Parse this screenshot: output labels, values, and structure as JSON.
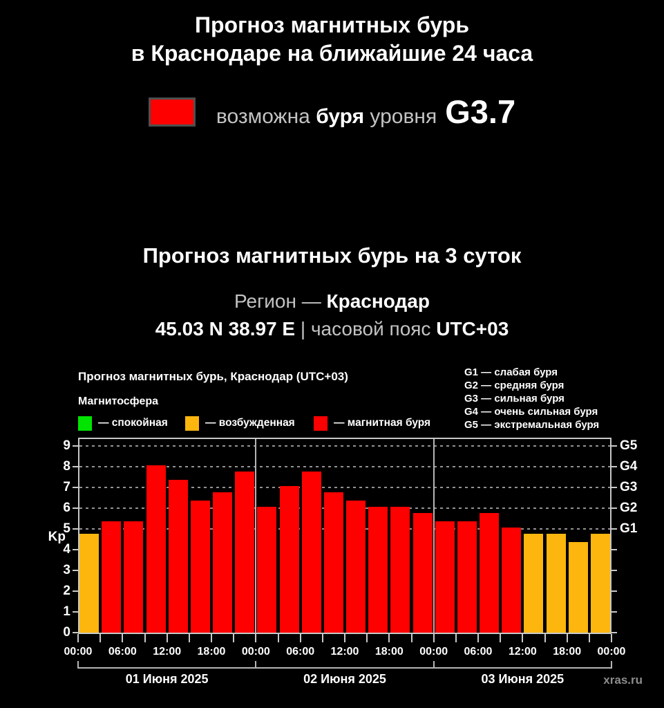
{
  "page": {
    "title_line1": "Прогноз магнитных бурь",
    "title_line2": "в Краснодаре на ближайшие 24 часа",
    "storm_level": {
      "prefix": "возможна",
      "storm_word": "буря",
      "middle": "уровня",
      "value": "G3.7",
      "swatch_color": "#ff0000"
    },
    "section_title": "Прогноз магнитных бурь на 3 суток",
    "region": {
      "label": "Регион",
      "dash": " — ",
      "name": "Краснодар"
    },
    "coords": {
      "position": "45.03 N 38.97 E",
      "separator": " | ",
      "tz_label": "часовой пояс",
      "tz": "UTC+03"
    }
  },
  "chart": {
    "title": "Прогноз магнитных бурь, Краснодар (UTC+03)",
    "legend_title": "Магнитосфера",
    "legend": [
      {
        "label": "— спокойная",
        "color": "#00e400"
      },
      {
        "label": "— возбужденная",
        "color": "#fdb60d"
      },
      {
        "label": "— магнитная буря",
        "color": "#ff0000"
      }
    ],
    "g_legend": [
      "G1 — слабая буря",
      "G2 — средняя буря",
      "G3 — сильная буря",
      "G4 — очень сильная буря",
      "G5 — экстремальная буря"
    ],
    "ylabel": "Kp",
    "watermark": "xras.ru"
  },
  "chart_data": {
    "type": "bar",
    "title": "Прогноз магнитных бурь, Краснодар (UTC+03)",
    "ylabel": "Kp",
    "ylim": [
      0,
      9
    ],
    "yticks": [
      0,
      1,
      2,
      3,
      4,
      5,
      6,
      7,
      8,
      9
    ],
    "gridlines_at": [
      5,
      6,
      7,
      8,
      9
    ],
    "g_scale": {
      "5": "G1",
      "6": "G2",
      "7": "G3",
      "8": "G4",
      "9": "G5"
    },
    "hours_per_bar": 3,
    "time_labels": [
      "00:00",
      "06:00",
      "12:00",
      "18:00",
      "00:00",
      "06:00",
      "12:00",
      "18:00",
      "00:00",
      "06:00",
      "12:00",
      "18:00",
      "00:00"
    ],
    "days": [
      {
        "date": "01 Июня 2025",
        "values": [
          4.7,
          5.3,
          5.3,
          8.0,
          7.3,
          6.3,
          6.7,
          7.7
        ]
      },
      {
        "date": "02 Июня 2025",
        "values": [
          6.0,
          7.0,
          7.7,
          6.7,
          6.3,
          6.0,
          6.0,
          5.7
        ]
      },
      {
        "date": "03 Июня 2025",
        "values": [
          5.3,
          5.3,
          5.7,
          5.0,
          4.7,
          4.7,
          4.3,
          4.7
        ]
      }
    ],
    "color_rules": {
      "quiet_below": 4,
      "storm_from": 5
    },
    "colors": {
      "quiet": "#00e400",
      "excited": "#fdb60d",
      "storm": "#ff0000"
    }
  }
}
